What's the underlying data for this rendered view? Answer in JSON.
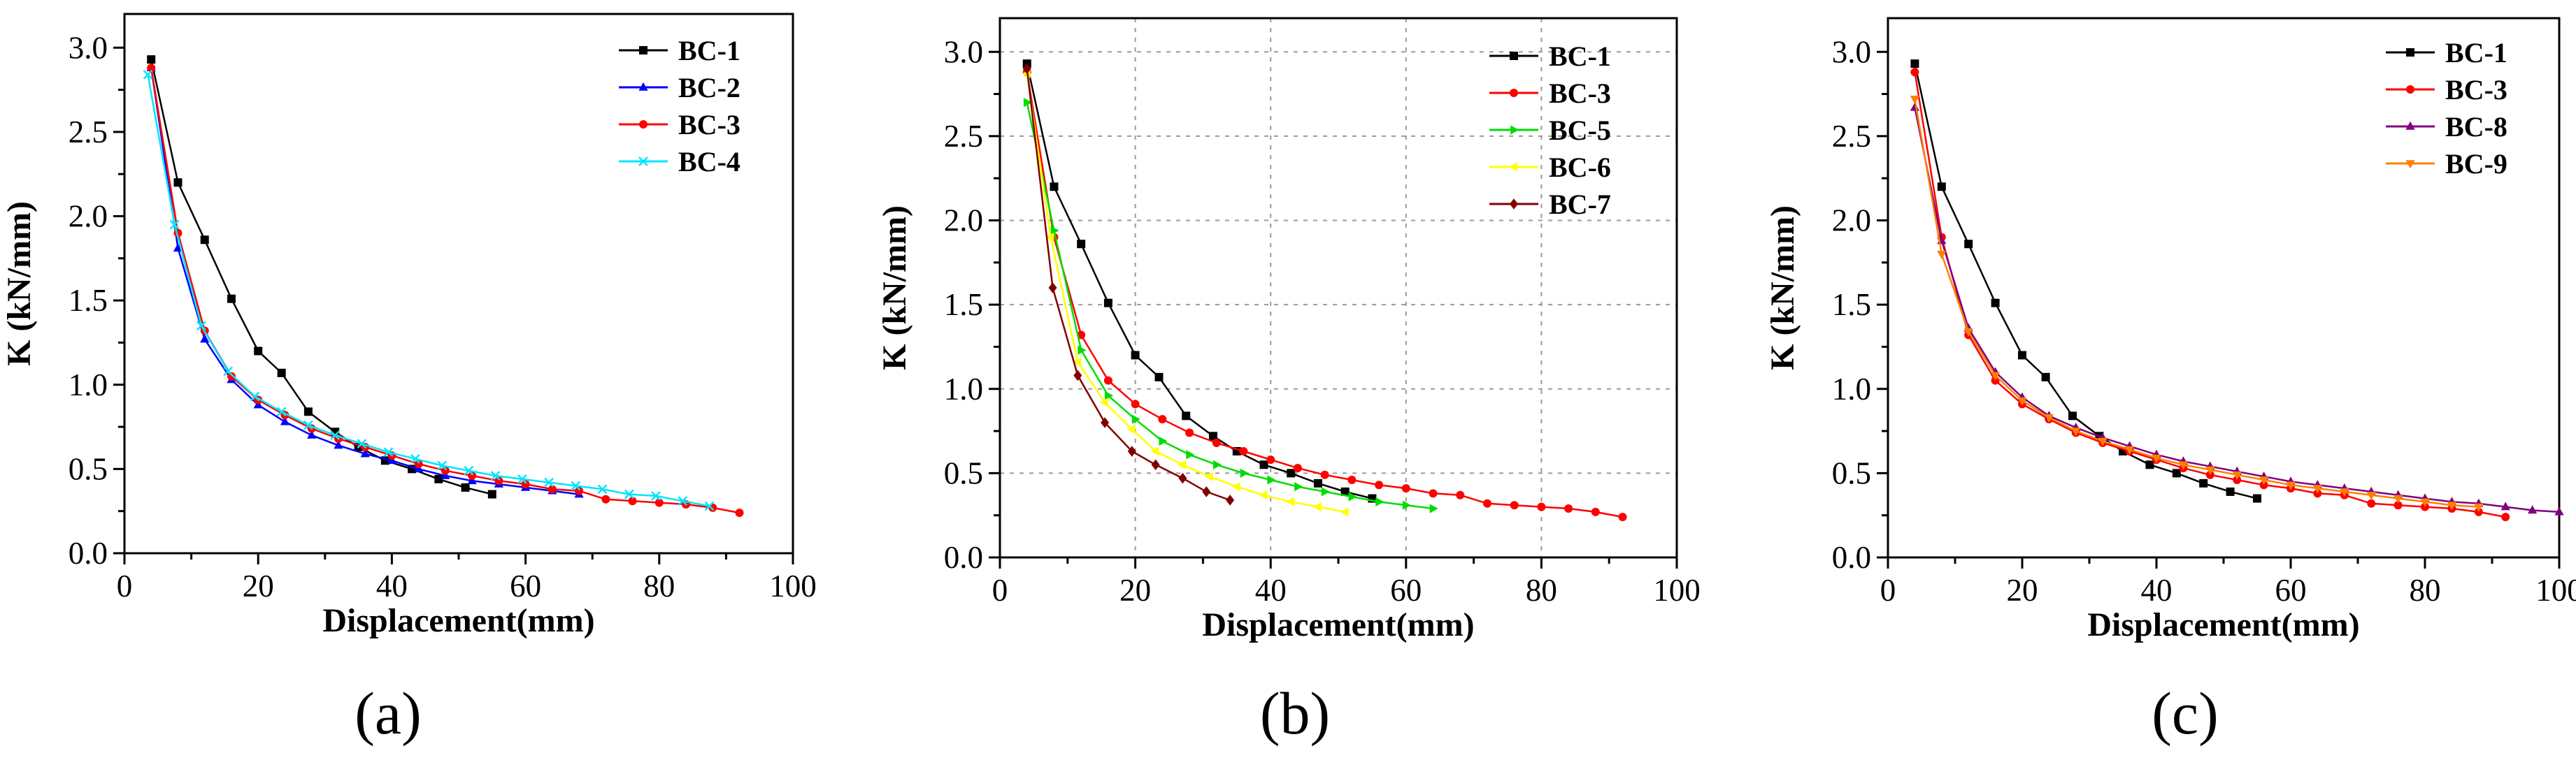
{
  "colors": {
    "axis": "#000000",
    "grid": "#9a9a9a",
    "background": "#ffffff"
  },
  "chart_data": [
    {
      "type": "line",
      "panel_label": "(a)",
      "xlabel": "Displacement(mm)",
      "ylabel": "K (kN/mm)",
      "xlim": [
        0,
        100
      ],
      "ylim": [
        0,
        3.2
      ],
      "xticks": [
        0,
        20,
        40,
        60,
        80,
        100
      ],
      "yticks": [
        0.0,
        0.5,
        1.0,
        1.5,
        2.0,
        2.5,
        3.0
      ],
      "grid": false,
      "legend_position": "top-right",
      "series": [
        {
          "name": "BC-1",
          "color": "#000000",
          "marker": "square",
          "x": [
            4,
            8,
            12,
            16,
            20,
            23.5,
            27.5,
            31.5,
            35,
            39,
            43,
            47,
            51,
            55
          ],
          "y": [
            2.93,
            2.2,
            1.86,
            1.51,
            1.2,
            1.07,
            0.84,
            0.72,
            0.63,
            0.55,
            0.5,
            0.44,
            0.39,
            0.35
          ]
        },
        {
          "name": "BC-2",
          "color": "#0000ff",
          "marker": "triangle",
          "x": [
            4,
            8,
            12,
            16,
            20,
            24,
            28,
            32,
            36,
            40,
            44,
            48,
            52,
            56,
            60,
            64,
            68
          ],
          "y": [
            2.88,
            1.81,
            1.27,
            1.03,
            0.88,
            0.78,
            0.7,
            0.64,
            0.59,
            0.55,
            0.5,
            0.46,
            0.43,
            0.41,
            0.39,
            0.37,
            0.35
          ]
        },
        {
          "name": "BC-3",
          "color": "#ff0000",
          "marker": "circle",
          "x": [
            4,
            8,
            12,
            16,
            20,
            24,
            28,
            32,
            36,
            40,
            44,
            48,
            52,
            56,
            60,
            64,
            68,
            72,
            76,
            80,
            84,
            88,
            92
          ],
          "y": [
            2.88,
            1.9,
            1.32,
            1.05,
            0.91,
            0.82,
            0.74,
            0.68,
            0.63,
            0.58,
            0.53,
            0.49,
            0.46,
            0.43,
            0.41,
            0.38,
            0.37,
            0.32,
            0.31,
            0.3,
            0.29,
            0.27,
            0.24
          ]
        },
        {
          "name": "BC-4",
          "color": "#00e5ff",
          "marker": "x",
          "x": [
            3.5,
            7.5,
            11.5,
            15.5,
            19.5,
            23.5,
            27.5,
            31.5,
            35.5,
            39.5,
            43.5,
            47.5,
            51.5,
            55.5,
            59.5,
            63.5,
            67.5,
            71.5,
            75.5,
            79.5,
            83.5,
            87.5
          ],
          "y": [
            2.84,
            1.95,
            1.35,
            1.08,
            0.93,
            0.84,
            0.76,
            0.7,
            0.65,
            0.6,
            0.56,
            0.52,
            0.49,
            0.46,
            0.44,
            0.42,
            0.4,
            0.38,
            0.35,
            0.34,
            0.31,
            0.28
          ]
        }
      ]
    },
    {
      "type": "line",
      "panel_label": "(b)",
      "xlabel": "Displacement(mm)",
      "ylabel": "K (kN/mm)",
      "xlim": [
        0,
        100
      ],
      "ylim": [
        0,
        3.2
      ],
      "xticks": [
        0,
        20,
        40,
        60,
        80,
        100
      ],
      "yticks": [
        0.0,
        0.5,
        1.0,
        1.5,
        2.0,
        2.5,
        3.0
      ],
      "grid": true,
      "legend_position": "top-right",
      "series": [
        {
          "name": "BC-1",
          "color": "#000000",
          "marker": "square",
          "x": [
            4,
            8,
            12,
            16,
            20,
            23.5,
            27.5,
            31.5,
            35,
            39,
            43,
            47,
            51,
            55
          ],
          "y": [
            2.93,
            2.2,
            1.86,
            1.51,
            1.2,
            1.07,
            0.84,
            0.72,
            0.63,
            0.55,
            0.5,
            0.44,
            0.39,
            0.35
          ]
        },
        {
          "name": "BC-3",
          "color": "#ff0000",
          "marker": "circle",
          "x": [
            4,
            8,
            12,
            16,
            20,
            24,
            28,
            32,
            36,
            40,
            44,
            48,
            52,
            56,
            60,
            64,
            68,
            72,
            76,
            80,
            84,
            88,
            92
          ],
          "y": [
            2.88,
            1.9,
            1.32,
            1.05,
            0.91,
            0.82,
            0.74,
            0.68,
            0.63,
            0.58,
            0.53,
            0.49,
            0.46,
            0.43,
            0.41,
            0.38,
            0.37,
            0.32,
            0.31,
            0.3,
            0.29,
            0.27,
            0.24
          ]
        },
        {
          "name": "BC-5",
          "color": "#00dd00",
          "marker": "triangle-right",
          "x": [
            4,
            8,
            12,
            16,
            20,
            24,
            28,
            32,
            36,
            40,
            44,
            48,
            52,
            56,
            60,
            64
          ],
          "y": [
            2.7,
            1.94,
            1.23,
            0.96,
            0.82,
            0.69,
            0.61,
            0.55,
            0.5,
            0.46,
            0.42,
            0.39,
            0.36,
            0.33,
            0.31,
            0.29
          ]
        },
        {
          "name": "BC-6",
          "color": "#ffff00",
          "marker": "triangle-left",
          "x": [
            4,
            7.5,
            11.5,
            15.5,
            19.5,
            23,
            27,
            31,
            35,
            39,
            43,
            47,
            51
          ],
          "y": [
            2.87,
            1.9,
            1.16,
            0.92,
            0.76,
            0.63,
            0.55,
            0.48,
            0.42,
            0.37,
            0.33,
            0.3,
            0.27
          ]
        },
        {
          "name": "BC-7",
          "color": "#7f0000",
          "marker": "diamond",
          "x": [
            4,
            7.8,
            11.5,
            15.5,
            19.5,
            23,
            27,
            30.5,
            34
          ],
          "y": [
            2.9,
            1.6,
            1.08,
            0.8,
            0.63,
            0.55,
            0.47,
            0.39,
            0.34
          ]
        }
      ]
    },
    {
      "type": "line",
      "panel_label": "(c)",
      "xlabel": "Displacement(mm)",
      "ylabel": "K (kN/mm)",
      "xlim": [
        0,
        100
      ],
      "ylim": [
        0,
        3.2
      ],
      "xticks": [
        0,
        20,
        40,
        60,
        80,
        100
      ],
      "yticks": [
        0.0,
        0.5,
        1.0,
        1.5,
        2.0,
        2.5,
        3.0
      ],
      "grid": false,
      "legend_position": "top-right",
      "series": [
        {
          "name": "BC-1",
          "color": "#000000",
          "marker": "square",
          "x": [
            4,
            8,
            12,
            16,
            20,
            23.5,
            27.5,
            31.5,
            35,
            39,
            43,
            47,
            51,
            55
          ],
          "y": [
            2.93,
            2.2,
            1.86,
            1.51,
            1.2,
            1.07,
            0.84,
            0.72,
            0.63,
            0.55,
            0.5,
            0.44,
            0.39,
            0.35
          ]
        },
        {
          "name": "BC-3",
          "color": "#ff0000",
          "marker": "circle",
          "x": [
            4,
            8,
            12,
            16,
            20,
            24,
            28,
            32,
            36,
            40,
            44,
            48,
            52,
            56,
            60,
            64,
            68,
            72,
            76,
            80,
            84,
            88,
            92
          ],
          "y": [
            2.88,
            1.9,
            1.32,
            1.05,
            0.91,
            0.82,
            0.74,
            0.68,
            0.63,
            0.58,
            0.53,
            0.49,
            0.46,
            0.43,
            0.41,
            0.38,
            0.37,
            0.32,
            0.31,
            0.3,
            0.29,
            0.27,
            0.24
          ]
        },
        {
          "name": "BC-8",
          "color": "#800080",
          "marker": "triangle",
          "x": [
            4,
            8,
            12,
            16,
            20,
            24,
            28,
            32,
            36,
            40,
            44,
            48,
            52,
            56,
            60,
            64,
            68,
            72,
            76,
            80,
            84,
            88,
            92,
            96,
            100
          ],
          "y": [
            2.67,
            1.88,
            1.36,
            1.1,
            0.95,
            0.84,
            0.77,
            0.71,
            0.66,
            0.61,
            0.57,
            0.54,
            0.51,
            0.48,
            0.45,
            0.43,
            0.41,
            0.39,
            0.37,
            0.35,
            0.33,
            0.32,
            0.3,
            0.28,
            0.27
          ]
        },
        {
          "name": "BC-9",
          "color": "#ff8000",
          "marker": "triangle-down",
          "x": [
            4,
            8,
            12,
            16,
            20,
            24,
            28,
            32,
            36,
            40,
            44,
            48,
            52,
            56,
            60,
            64,
            68,
            72,
            76,
            80,
            84,
            88
          ],
          "y": [
            2.72,
            1.8,
            1.34,
            1.08,
            0.93,
            0.83,
            0.75,
            0.69,
            0.64,
            0.59,
            0.55,
            0.52,
            0.49,
            0.46,
            0.43,
            0.41,
            0.39,
            0.37,
            0.35,
            0.33,
            0.31,
            0.3
          ]
        }
      ]
    }
  ]
}
